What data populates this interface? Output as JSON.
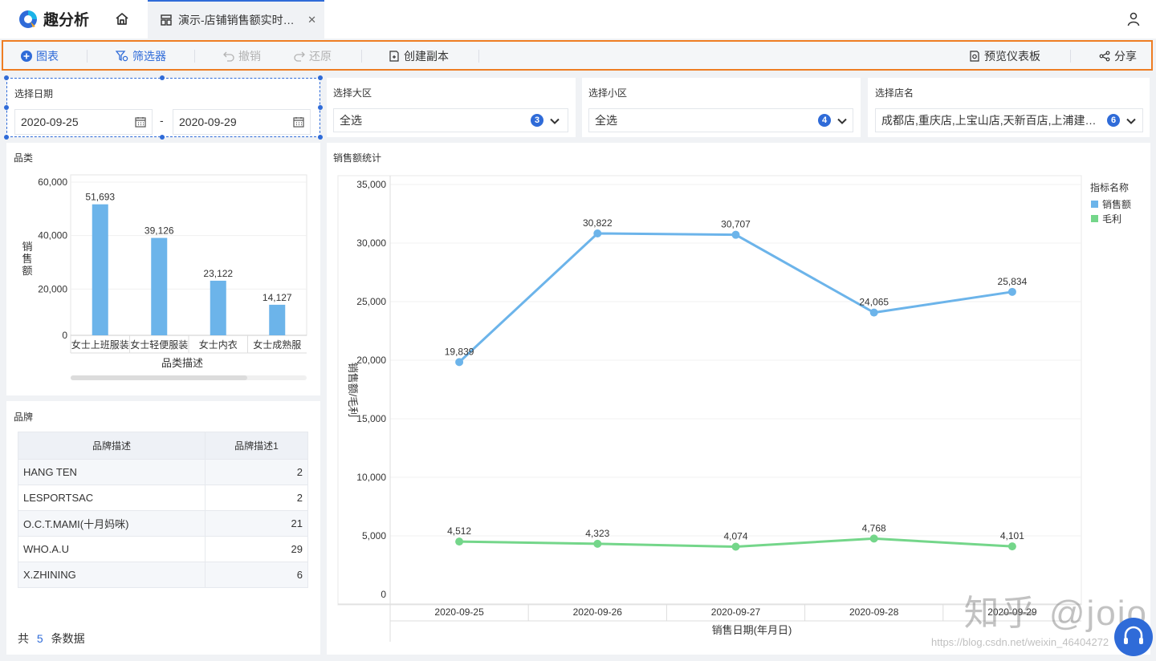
{
  "app": {
    "name": "趣分析"
  },
  "tab": {
    "title": "演示-店铺销售额实时…",
    "close": "✕"
  },
  "toolbar": {
    "chart": "图表",
    "filter": "筛选器",
    "undo": "撤销",
    "redo": "还原",
    "copy": "创建副本",
    "preview": "预览仪表板",
    "share": "分享"
  },
  "filters": {
    "date": {
      "label": "选择日期",
      "start": "2020-09-25",
      "sep": "-",
      "end": "2020-09-29"
    },
    "region": {
      "label": "选择大区",
      "value": "全选",
      "count": "3"
    },
    "subregion": {
      "label": "选择小区",
      "value": "全选",
      "count": "4"
    },
    "store": {
      "label": "选择店名",
      "value": "成都店,重庆店,上宝山店,天新百店,上浦建…",
      "count": "6"
    }
  },
  "category_panel": {
    "title": "品类"
  },
  "brand_panel": {
    "title": "品牌",
    "columns": [
      "品牌描述",
      "品牌描述1"
    ],
    "rows": [
      {
        "name": "HANG TEN",
        "value": "2"
      },
      {
        "name": "LESPORTSAC",
        "value": "2"
      },
      {
        "name": "O.C.T.MAMI(十月妈咪)",
        "value": "21"
      },
      {
        "name": "WHO.A.U",
        "value": "29"
      },
      {
        "name": "X.ZHINING",
        "value": "6"
      }
    ],
    "footer": {
      "prefix": "共",
      "count": "5",
      "suffix": "条数据"
    }
  },
  "sales_panel": {
    "title": "销售额统计"
  },
  "colors": {
    "accent": "#2f6bd8",
    "sales": "#6cb4ea",
    "profit": "#74d68a",
    "highlight": "#ee7d23"
  },
  "chart_data": [
    {
      "type": "bar",
      "categories": [
        "女士上班服装",
        "女士轻便服装",
        "女士内衣",
        "女士成熟服"
      ],
      "values": [
        51693,
        39126,
        23122,
        14127
      ],
      "labels": [
        "51,693",
        "39,126",
        "23,122",
        "14,127"
      ],
      "yticks": [
        "60,000",
        "40,000",
        "20,000",
        "0"
      ],
      "ytick_values": [
        60000,
        40000,
        20000,
        0
      ],
      "ylim": [
        0,
        60000
      ],
      "xlabel": "品类描述",
      "ylabel": "销售额"
    },
    {
      "type": "line",
      "x": [
        "2020-09-25",
        "2020-09-26",
        "2020-09-27",
        "2020-09-28",
        "2020-09-29"
      ],
      "series": [
        {
          "name": "销售额",
          "values": [
            19839,
            30822,
            30707,
            24065,
            25834
          ],
          "labels": [
            "19,839",
            "30,822",
            "30,707",
            "24,065",
            "25,834"
          ]
        },
        {
          "name": "毛利",
          "values": [
            4512,
            4323,
            4074,
            4768,
            4101
          ],
          "labels": [
            "4,512",
            "4,323",
            "4,074",
            "4,768",
            "4,101"
          ]
        }
      ],
      "yticks": [
        "35,000",
        "30,000",
        "25,000",
        "20,000",
        "15,000",
        "10,000",
        "5,000",
        "0"
      ],
      "ytick_values": [
        35000,
        30000,
        25000,
        20000,
        15000,
        10000,
        5000,
        0
      ],
      "ylim": [
        0,
        35000
      ],
      "xlabel": "销售日期(年月日)",
      "ylabel": "销售额/毛利",
      "legend": {
        "title": "指标名称",
        "position": "top-right"
      }
    }
  ],
  "watermark": {
    "text": "知乎 @jojo",
    "url": "https://blog.csdn.net/weixin_46404272"
  }
}
